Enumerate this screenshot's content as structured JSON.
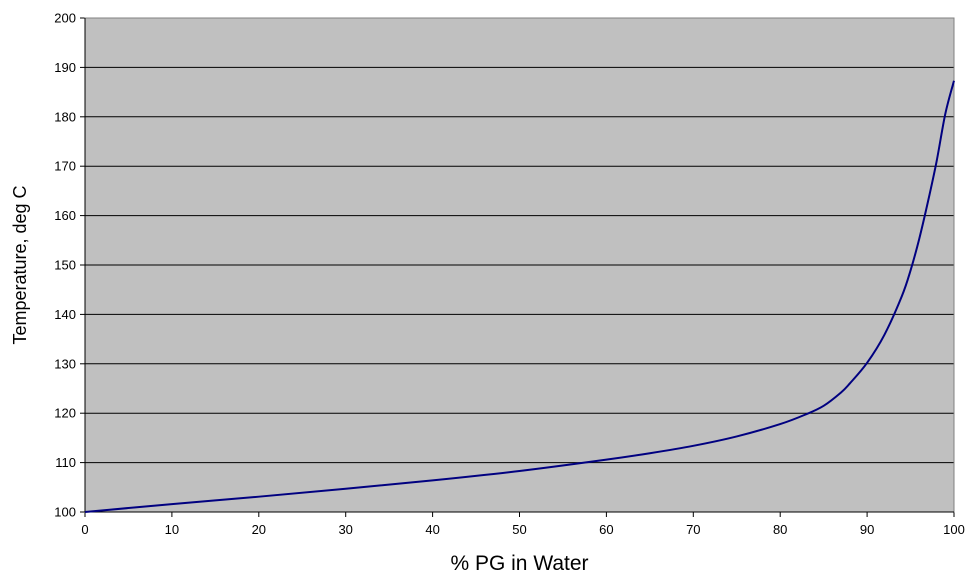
{
  "chart_data": {
    "type": "line",
    "title": "",
    "xlabel": "% PG in Water",
    "ylabel": "Temperature, deg C",
    "xlim": [
      0,
      100
    ],
    "ylim": [
      100,
      200
    ],
    "x_ticks": [
      0,
      10,
      20,
      30,
      40,
      50,
      60,
      70,
      80,
      90,
      100
    ],
    "y_ticks": [
      100,
      110,
      120,
      130,
      140,
      150,
      160,
      170,
      180,
      190,
      200
    ],
    "grid": "horizontal major",
    "legend": "none",
    "colors": {
      "plot_background": "#c0c0c0",
      "line": "#000080",
      "grid": "#000000"
    },
    "series": [
      {
        "x": [
          0,
          10,
          20,
          30,
          40,
          50,
          60,
          65,
          70,
          75,
          80,
          83,
          85,
          87,
          88,
          90,
          92,
          94,
          95,
          96,
          97,
          98,
          99,
          100
        ],
        "y": [
          100,
          101.6,
          103.1,
          104.7,
          106.4,
          108.3,
          110.6,
          111.9,
          113.4,
          115.3,
          117.8,
          119.8,
          121.5,
          124.2,
          126.0,
          130.2,
          135.9,
          143.7,
          148.9,
          155.3,
          162.8,
          171.0,
          180.6,
          187.3
        ]
      }
    ]
  }
}
